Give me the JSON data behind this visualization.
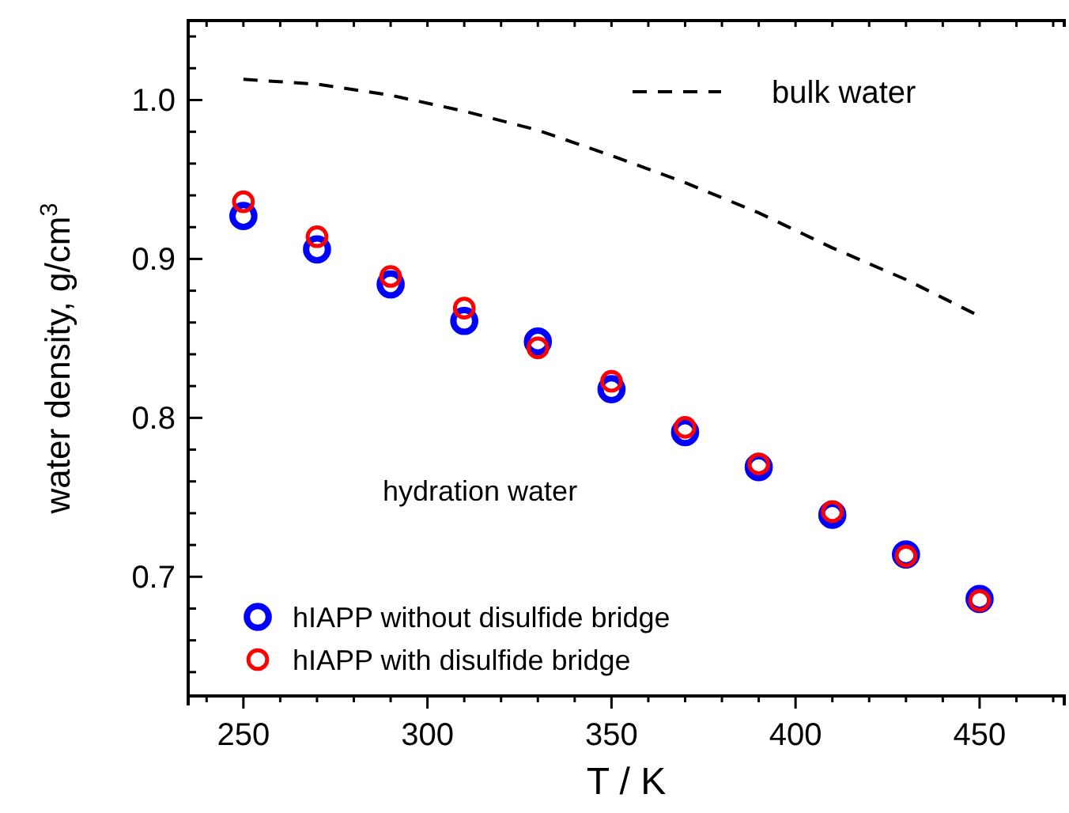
{
  "chart_data": {
    "type": "scatter",
    "xlabel": "T / K",
    "ylabel": "water density, g/cm$^{3}$",
    "x": [
      250,
      270,
      290,
      310,
      330,
      350,
      370,
      390,
      410,
      430,
      450
    ],
    "xlim": [
      235,
      473
    ],
    "xticks": [
      {
        "value": 240,
        "label": null
      },
      250,
      {
        "value": 260,
        "label": null
      },
      {
        "value": 270,
        "label": null
      },
      {
        "value": 280,
        "label": null
      },
      {
        "value": 290,
        "label": null
      },
      300,
      {
        "value": 310,
        "label": null
      },
      {
        "value": 320,
        "label": null
      },
      {
        "value": 330,
        "label": null
      },
      {
        "value": 340,
        "label": null
      },
      350,
      {
        "value": 360,
        "label": null
      },
      {
        "value": 370,
        "label": null
      },
      {
        "value": 380,
        "label": null
      },
      {
        "value": 390,
        "label": null
      },
      400,
      {
        "value": 410,
        "label": null
      },
      {
        "value": 420,
        "label": null
      },
      {
        "value": 430,
        "label": null
      },
      {
        "value": 440,
        "label": null
      },
      450,
      {
        "value": 460,
        "label": null
      },
      {
        "value": 470,
        "label": null
      }
    ],
    "ylim": [
      0.625,
      1.05
    ],
    "yticks": [
      {
        "value": 0.64,
        "label": null
      },
      {
        "value": 0.66,
        "label": null
      },
      {
        "value": 0.68,
        "label": null
      },
      0.7,
      {
        "value": 0.72,
        "label": null
      },
      {
        "value": 0.74,
        "label": null
      },
      {
        "value": 0.76,
        "label": null
      },
      {
        "value": 0.78,
        "label": null
      },
      0.8,
      {
        "value": 0.82,
        "label": null
      },
      {
        "value": 0.84,
        "label": null
      },
      {
        "value": 0.86,
        "label": null
      },
      {
        "value": 0.88,
        "label": null
      },
      0.9,
      {
        "value": 0.92,
        "label": null
      },
      {
        "value": 0.94,
        "label": null
      },
      {
        "value": 0.96,
        "label": null
      },
      {
        "value": 0.98,
        "label": null
      },
      {
        "value": 1.0,
        "label": "1.0"
      },
      {
        "value": 1.02,
        "label": null
      },
      {
        "value": 1.04,
        "label": null
      }
    ],
    "marker": "circle",
    "legend": "bottom left",
    "grid": false,
    "annotations": [
      "hydration water"
    ],
    "series": [
      {
        "name": "bulk water",
        "type": "line",
        "line_style": "dashed",
        "marker": "none",
        "color": "#000000",
        "values": [
          1.013,
          1.01,
          1.003,
          0.993,
          0.981,
          0.965,
          0.948,
          0.929,
          0.907,
          0.887,
          0.864
        ]
      },
      {
        "name": "hIAPP without disulfide bridge",
        "color": "#0000ff",
        "values": [
          0.927,
          0.906,
          0.884,
          0.861,
          0.848,
          0.818,
          0.791,
          0.769,
          0.739,
          0.714,
          0.686
        ]
      },
      {
        "name": "hIAPP with disulfide bridge",
        "color": "#ff0000",
        "values": [
          0.936,
          0.914,
          0.889,
          0.869,
          0.844,
          0.823,
          0.794,
          0.771,
          0.741,
          0.713,
          0.685
        ]
      }
    ]
  }
}
